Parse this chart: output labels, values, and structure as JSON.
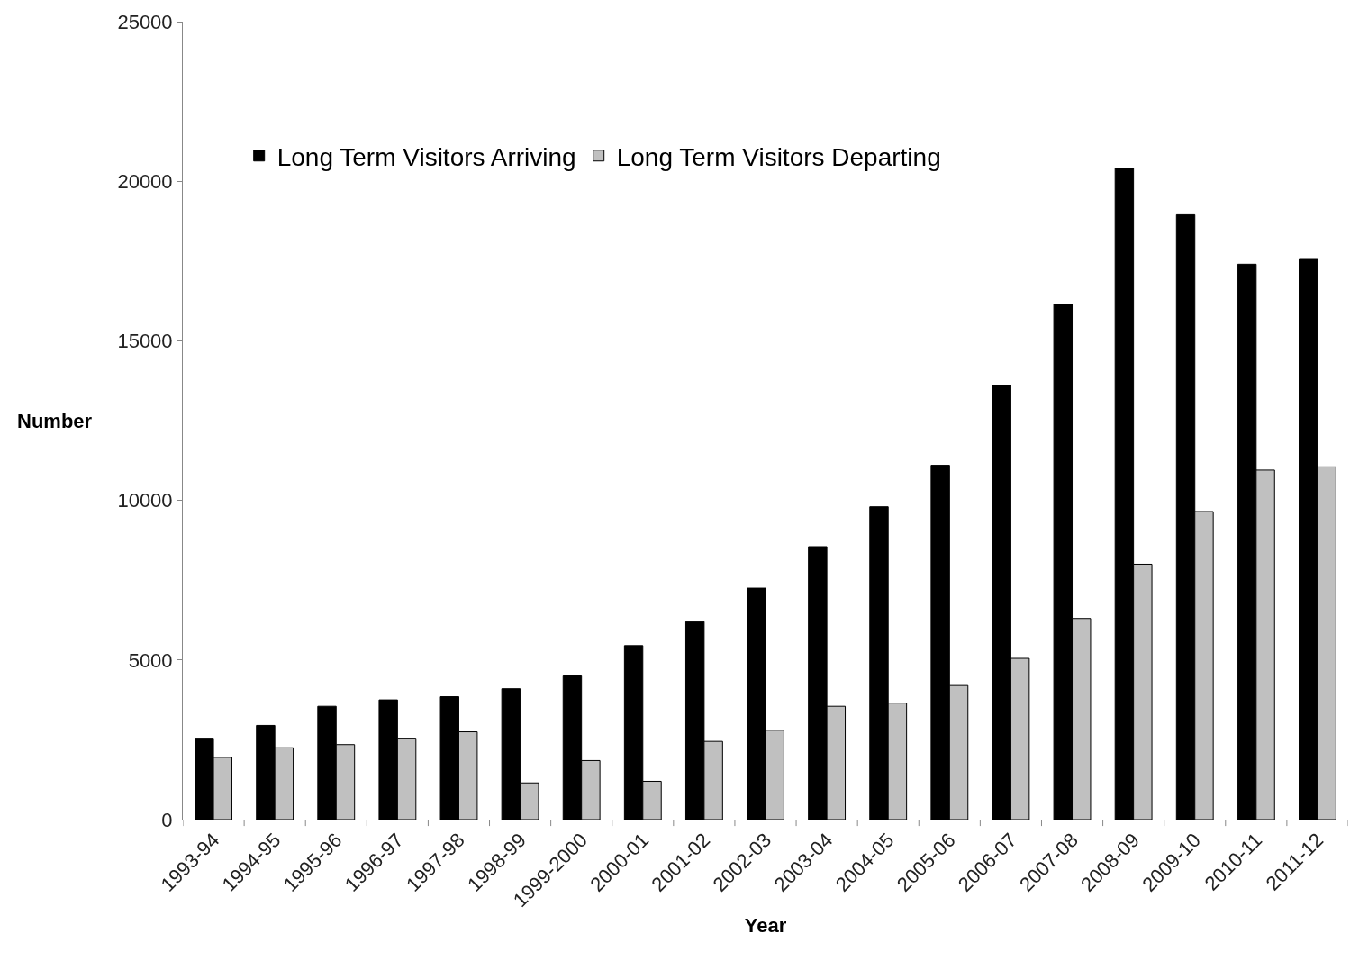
{
  "chart_data": {
    "type": "bar",
    "xlabel": "Year",
    "ylabel": "Number",
    "categories": [
      "1993-94",
      "1994-95",
      "1995-96",
      "1996-97",
      "1997-98",
      "1998-99",
      "1999-2000",
      "2000-01",
      "2001-02",
      "2002-03",
      "2003-04",
      "2004-05",
      "2005-06",
      "2006-07",
      "2007-08",
      "2008-09",
      "2009-10",
      "2010-11",
      "2011-12"
    ],
    "series": [
      {
        "name": "Long Term Visitors Arriving",
        "color": "#000000",
        "values": [
          2550,
          2950,
          3550,
          3750,
          3850,
          4100,
          4500,
          5450,
          6200,
          7250,
          8550,
          9800,
          11100,
          13600,
          16150,
          20400,
          18950,
          17400,
          17550
        ]
      },
      {
        "name": "Long Term Visitors Departing",
        "color": "#c0c0c0",
        "values": [
          1950,
          2250,
          2350,
          2550,
          2750,
          1150,
          1850,
          1200,
          2450,
          2800,
          3550,
          3650,
          4200,
          5050,
          6300,
          8000,
          9650,
          10950,
          11050
        ]
      }
    ],
    "ylim": [
      0,
      25000
    ],
    "yticks": [
      0,
      5000,
      10000,
      15000,
      20000,
      25000
    ],
    "grid": false,
    "legend": "top left"
  }
}
